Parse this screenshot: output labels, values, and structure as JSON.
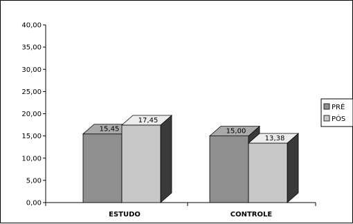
{
  "chart_data": {
    "type": "bar",
    "title": "",
    "xlabel": "",
    "ylabel": "",
    "categories": [
      "ESTUDO",
      "CONTROLE"
    ],
    "series": [
      {
        "name": "PRÉ",
        "values": [
          15.45,
          15.0
        ],
        "labels": [
          "15,45",
          "15,00"
        ],
        "color": "#8f8f8f"
      },
      {
        "name": "PÓS",
        "values": [
          17.45,
          13.38
        ],
        "labels": [
          "17,45",
          "13,38"
        ],
        "color": "#c8c8c8"
      }
    ],
    "ylim": [
      0,
      40
    ],
    "yticks": [
      0,
      5,
      10,
      15,
      20,
      25,
      30,
      35,
      40
    ],
    "ytick_labels": [
      "0,00",
      "5,00",
      "10,00",
      "15,00",
      "20,00",
      "25,00",
      "30,00",
      "35,00",
      "40,00"
    ],
    "style": "3d-bar",
    "grid": false,
    "legend_position": "right"
  }
}
